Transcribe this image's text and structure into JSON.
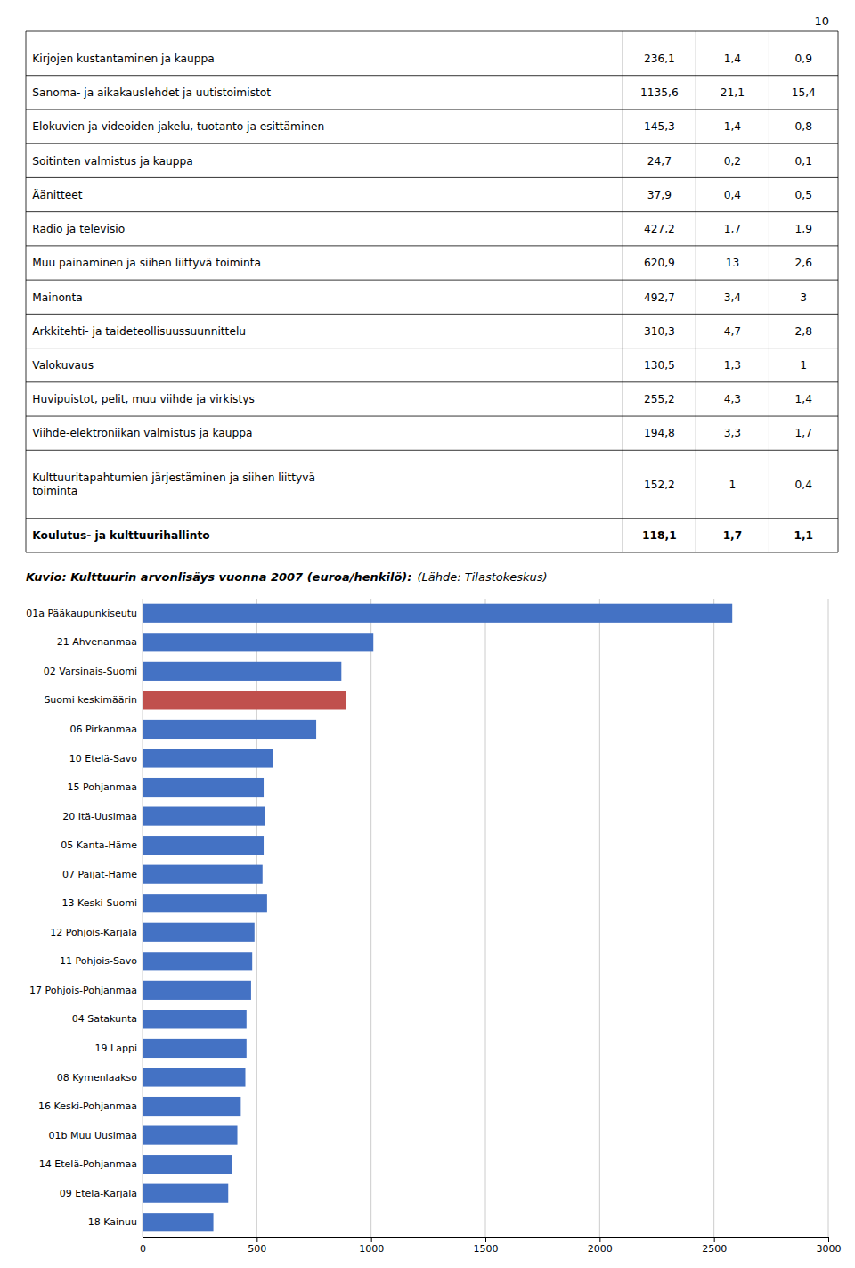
{
  "chart_data": [
    {
      "type": "table",
      "annotations": [
        "10"
      ],
      "categories": [
        "Kirjojen kustantaminen ja kauppa",
        "Sanoma- ja aikakauslehdet ja uutistoimistot",
        "Elokuvien ja videoiden jakelu, tuotanto ja esittäminen",
        "Soitinten valmistus ja kauppa",
        "Äänitteet",
        "Radio ja televisio",
        "Muu painaminen ja siihen liittyvä toiminta",
        "Mainonta",
        "Arkkitehti- ja taideteollisuussuunnittelu",
        "Valokuvaus",
        "Huvipuistot, pelit, muu viihde ja virkistys",
        "Viihde-elektroniikan valmistus ja kauppa",
        "Kulttuuritapahtumien järjestäminen ja siihen liittyvä\ntoiminta",
        "Koulutus- ja kulttuurihallinto"
      ],
      "series": [
        {
          "values": [
            236.1,
            1135.6,
            145.3,
            24.7,
            37.9,
            427.2,
            620.9,
            492.7,
            310.3,
            130.5,
            255.2,
            194.8,
            152.2,
            118.1
          ],
          "value_labels": [
            "236,1",
            "1135,6",
            "145,3",
            "24,7",
            "37,9",
            "427,2",
            "620,9",
            "492,7",
            "310,3",
            "130,5",
            "255,2",
            "194,8",
            "152,2",
            "118,1"
          ]
        },
        {
          "values": [
            1.4,
            21.1,
            1.4,
            0.2,
            0.4,
            1.7,
            13,
            3.4,
            4.7,
            1.3,
            4.3,
            3.3,
            1,
            1.7
          ],
          "value_labels": [
            "1,4",
            "21,1",
            "1,4",
            "0,2",
            "0,4",
            "1,7",
            "13",
            "3,4",
            "4,7",
            "1,3",
            "4,3",
            "3,3",
            "1",
            "1,7"
          ]
        },
        {
          "values": [
            0.9,
            15.4,
            0.8,
            0.1,
            0.5,
            1.9,
            2.6,
            3,
            2.8,
            1,
            1.4,
            1.7,
            0.4,
            1.1
          ],
          "value_labels": [
            "0,9",
            "15,4",
            "0,8",
            "0,1",
            "0,5",
            "1,9",
            "2,6",
            "3",
            "2,8",
            "1",
            "1,4",
            "1,7",
            "0,4",
            "1,1"
          ]
        }
      ]
    },
    {
      "type": "bar",
      "orientation": "horizontal",
      "title": "Kuvio: Kulttuurin arvonlisäys vuonna 2007 (euroa/henkilö):",
      "subtitle": "(Lähde: Tilastokeskus)",
      "categories": [
        "01a Pääkaupunkiseutu",
        "21 Ahvenanmaa",
        "02 Varsinais-Suomi",
        "Suomi keskimäärin",
        "06 Pirkanmaa",
        "10 Etelä-Savo",
        "15 Pohjanmaa",
        "20 Itä-Uusimaa",
        "05 Kanta-Häme",
        "07 Päijät-Häme",
        "13 Keski-Suomi",
        "12 Pohjois-Karjala",
        "11 Pohjois-Savo",
        "17 Pohjois-Pohjanmaa",
        "04 Satakunta",
        "19 Lappi",
        "08 Kymenlaakso",
        "16 Keski-Pohjanmaa",
        "01b Muu Uusimaa",
        "14 Etelä-Pohjanmaa",
        "09 Etelä-Karjala",
        "18 Kainuu"
      ],
      "values": [
        2580,
        1010,
        870,
        890,
        760,
        570,
        530,
        535,
        530,
        525,
        545,
        490,
        480,
        475,
        455,
        455,
        450,
        430,
        415,
        390,
        375,
        310
      ],
      "colors": [
        "#4472C4",
        "#4472C4",
        "#4472C4",
        "#C0504D",
        "#4472C4",
        "#4472C4",
        "#4472C4",
        "#4472C4",
        "#4472C4",
        "#4472C4",
        "#4472C4",
        "#4472C4",
        "#4472C4",
        "#4472C4",
        "#4472C4",
        "#4472C4",
        "#4472C4",
        "#4472C4",
        "#4472C4",
        "#4472C4",
        "#4472C4",
        "#4472C4"
      ],
      "xlim": [
        0,
        3000
      ],
      "xticks": [
        0,
        500,
        1000,
        1500,
        2000,
        2500,
        3000
      ],
      "grid": true
    }
  ]
}
